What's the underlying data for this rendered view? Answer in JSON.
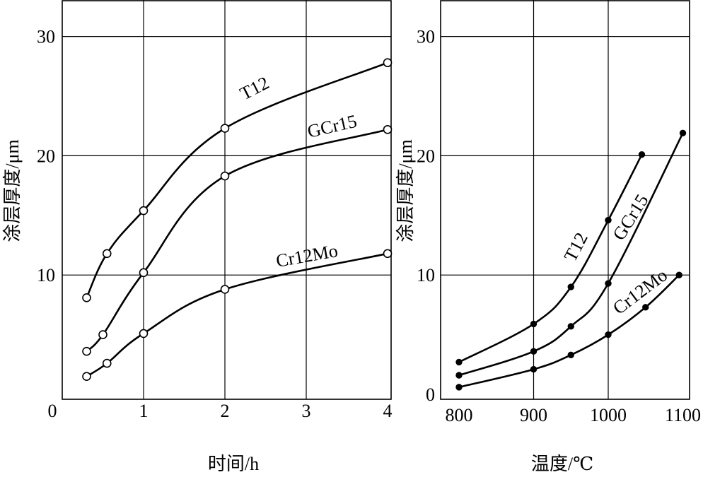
{
  "chart_data": [
    {
      "type": "line",
      "xlabel": "时间/h",
      "ylabel": "涂层厚度/μm",
      "xlim": [
        0,
        4
      ],
      "ylim": [
        0,
        33
      ],
      "xticks": [
        "0",
        "1",
        "2",
        "3",
        "4"
      ],
      "yticks": [
        "10",
        "20",
        "30"
      ],
      "grid": true,
      "marker": "open-circle",
      "series": [
        {
          "name": "T12",
          "x": [
            0.3,
            0.55,
            1,
            2,
            4
          ],
          "y": [
            8.1,
            11.8,
            15.4,
            22.3,
            27.8
          ]
        },
        {
          "name": "GCr15",
          "x": [
            0.3,
            0.5,
            1,
            2,
            4
          ],
          "y": [
            3.6,
            5.0,
            10.2,
            18.3,
            22.2
          ]
        },
        {
          "name": "Cr12Mo",
          "x": [
            0.3,
            0.55,
            1,
            2,
            4
          ],
          "y": [
            1.5,
            2.6,
            5.1,
            8.8,
            11.8
          ]
        }
      ]
    },
    {
      "type": "line",
      "xlabel": "温度/℃",
      "ylabel": "涂层厚度/μm",
      "xlim": [
        790,
        1100
      ],
      "ylim": [
        0,
        33
      ],
      "xticks": [
        "800",
        "900",
        "1000",
        "1100"
      ],
      "yticks": [
        "0",
        "10",
        "20",
        "30"
      ],
      "grid": true,
      "marker": "filled-dot",
      "series": [
        {
          "name": "T12",
          "x": [
            800,
            900,
            950,
            1000,
            1045
          ],
          "y": [
            2.7,
            5.9,
            9.0,
            14.6,
            20.1
          ]
        },
        {
          "name": "GCr15",
          "x": [
            800,
            900,
            950,
            1000,
            1100
          ],
          "y": [
            1.6,
            3.6,
            5.7,
            9.3,
            21.9
          ]
        },
        {
          "name": "Cr12Mo",
          "x": [
            800,
            900,
            950,
            1000,
            1050,
            1095
          ],
          "y": [
            0.6,
            2.1,
            3.3,
            5.0,
            7.3,
            10.0
          ]
        }
      ]
    }
  ]
}
